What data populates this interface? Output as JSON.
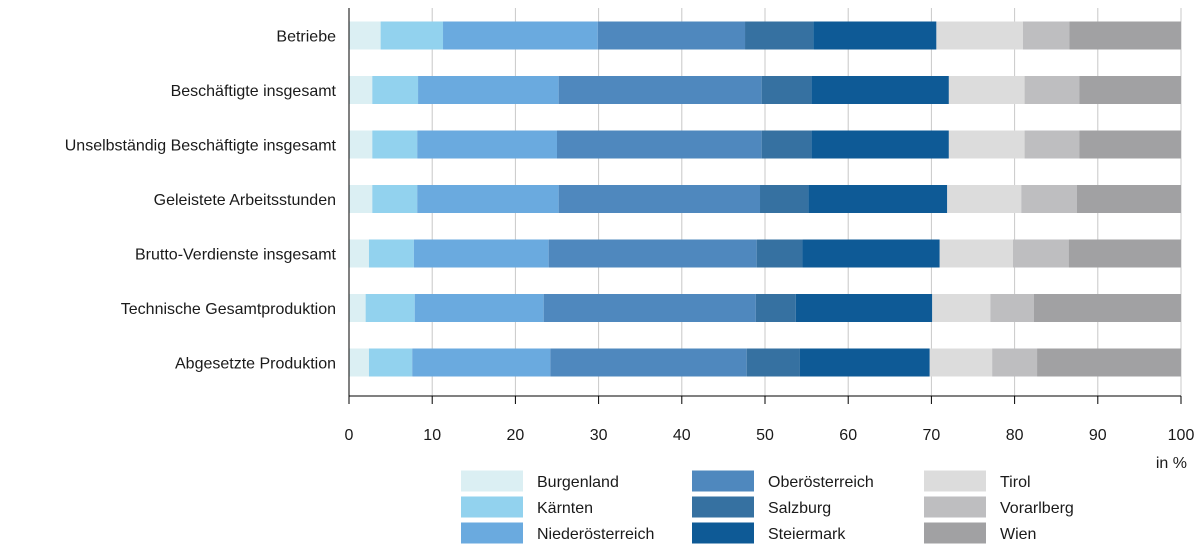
{
  "chart_data": {
    "type": "bar",
    "orientation": "horizontal",
    "stacked": true,
    "categories": [
      "Betriebe",
      "Beschäftigte insgesamt",
      "Unselbständig Beschäftigte insgesamt",
      "Geleistete Arbeitsstunden",
      "Brutto-Verdienste insgesamt",
      "Technische Gesamtproduktion",
      "Abgesetzte Produktion"
    ],
    "series": [
      {
        "name": "Burgenland",
        "color": "#dbeff3",
        "values": [
          3.8,
          2.8,
          2.8,
          2.8,
          2.4,
          2.0,
          2.4
        ]
      },
      {
        "name": "Kärnten",
        "color": "#92d2ee",
        "values": [
          7.5,
          5.5,
          5.4,
          5.4,
          5.4,
          5.9,
          5.2
        ]
      },
      {
        "name": "Niederösterreich",
        "color": "#6aaadf",
        "values": [
          18.6,
          16.9,
          16.8,
          17.0,
          16.2,
          15.5,
          16.6
        ]
      },
      {
        "name": "Oberösterreich",
        "color": "#4f88be",
        "values": [
          17.7,
          24.4,
          24.6,
          24.2,
          25.0,
          25.5,
          23.6
        ]
      },
      {
        "name": "Salzburg",
        "color": "#3671a1",
        "values": [
          8.2,
          6.0,
          6.0,
          5.8,
          5.5,
          4.8,
          6.4
        ]
      },
      {
        "name": "Steiermark",
        "color": "#0e5a96",
        "values": [
          14.8,
          16.5,
          16.5,
          16.7,
          16.5,
          16.4,
          15.6
        ]
      },
      {
        "name": "Tirol",
        "color": "#dcdcdc",
        "values": [
          10.4,
          9.1,
          9.1,
          8.9,
          8.8,
          7.0,
          7.5
        ]
      },
      {
        "name": "Vorarlberg",
        "color": "#bebec0",
        "values": [
          5.6,
          6.6,
          6.6,
          6.7,
          6.7,
          5.2,
          5.4
        ]
      },
      {
        "name": "Wien",
        "color": "#a1a1a3",
        "values": [
          13.4,
          12.2,
          12.2,
          12.5,
          13.5,
          17.7,
          17.3
        ]
      }
    ],
    "xlim": [
      0,
      100
    ],
    "xticks": [
      "0",
      "10",
      "20",
      "30",
      "40",
      "50",
      "60",
      "70",
      "80",
      "90",
      "100"
    ],
    "xunit": "in %",
    "grid": true,
    "legend_position": "bottom"
  }
}
